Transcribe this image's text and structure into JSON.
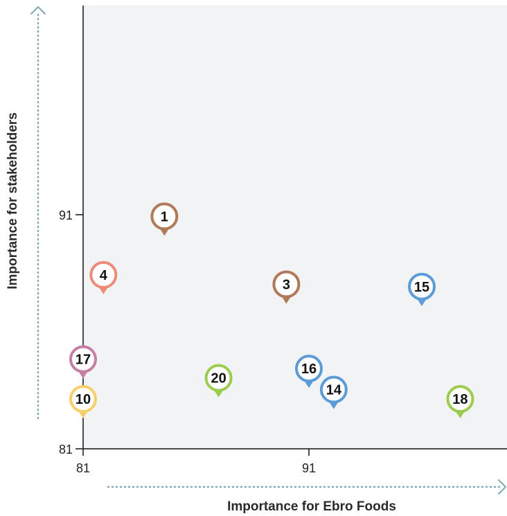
{
  "chart_data": {
    "type": "scatter",
    "xlabel": "Importance for Ebro Foods",
    "ylabel": "Importance for stakeholders",
    "xlim": [
      81,
      100
    ],
    "ylim": [
      81,
      100
    ],
    "x_ticks": [
      {
        "value": 81,
        "label": "81"
      },
      {
        "value": 91,
        "label": "91"
      }
    ],
    "y_ticks": [
      {
        "value": 81,
        "label": "81"
      },
      {
        "value": 91,
        "label": "91"
      }
    ],
    "grid": false,
    "background_color": "#f1f3f5",
    "points": [
      {
        "label": "1",
        "x": 84.6,
        "y": 90.1,
        "color": "#b07a5a"
      },
      {
        "label": "4",
        "x": 81.9,
        "y": 87.6,
        "color": "#ee8a78"
      },
      {
        "label": "3",
        "x": 90.0,
        "y": 87.2,
        "color": "#b07a5a"
      },
      {
        "label": "15",
        "x": 96.0,
        "y": 87.1,
        "color": "#5b9bd8"
      },
      {
        "label": "17",
        "x": 81.0,
        "y": 84.0,
        "color": "#c47fa3"
      },
      {
        "label": "16",
        "x": 91.0,
        "y": 83.6,
        "color": "#5b9bd8"
      },
      {
        "label": "20",
        "x": 87.0,
        "y": 83.2,
        "color": "#9ccc4e"
      },
      {
        "label": "14",
        "x": 92.1,
        "y": 82.7,
        "color": "#5b9bd8"
      },
      {
        "label": "10",
        "x": 81.0,
        "y": 82.3,
        "color": "#f7cf6a"
      },
      {
        "label": "18",
        "x": 97.7,
        "y": 82.3,
        "color": "#9ccc4e"
      }
    ]
  }
}
